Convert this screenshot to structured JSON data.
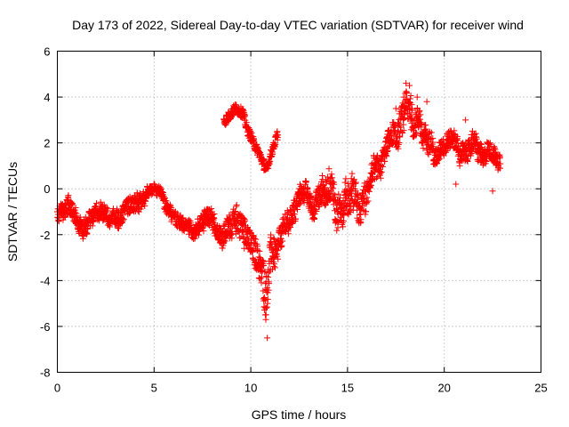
{
  "chart_data": {
    "type": "scatter",
    "title": "Day 173 of 2022, Sidereal Day-to-day VTEC variation (SDTVAR) for receiver wind",
    "xlabel": "GPS time / hours",
    "ylabel": "SDTVAR / TECUs",
    "xlim": [
      0,
      25
    ],
    "ylim": [
      -8,
      6
    ],
    "xticks": [
      0,
      5,
      10,
      15,
      20,
      25
    ],
    "yticks": [
      -8,
      -6,
      -4,
      -2,
      0,
      2,
      4,
      6
    ],
    "xtick_labels": [
      "0",
      "5",
      "10",
      "15",
      "20",
      "25"
    ],
    "ytick_labels": [
      "-8",
      "-6",
      "-4",
      "-2",
      "0",
      "2",
      "4",
      "6"
    ],
    "grid": true,
    "marker": "+",
    "series": [
      {
        "name": "SDTVAR",
        "color": "#ff0000",
        "trend_x": [
          0.0,
          0.3,
          0.6,
          1.0,
          1.5,
          2.0,
          2.5,
          3.0,
          3.5,
          4.0,
          4.3,
          4.6,
          5.0,
          5.4,
          5.8,
          6.2,
          6.6,
          7.0,
          7.5,
          8.0,
          8.4,
          8.8,
          9.2,
          9.6,
          10.0,
          10.3,
          10.6,
          10.8,
          11.0,
          11.3,
          11.6,
          12.0,
          12.4,
          12.8,
          13.2,
          13.6,
          14.0,
          14.4,
          14.8,
          15.2,
          15.6,
          16.0,
          16.4,
          16.8,
          17.2,
          17.6,
          18.0,
          18.4,
          18.8,
          19.2,
          19.6,
          20.0,
          20.4,
          20.8,
          21.2,
          21.6,
          22.0,
          22.4,
          22.9
        ],
        "trend_y": [
          -1.2,
          -1.0,
          -0.8,
          -1.4,
          -1.6,
          -1.0,
          -1.3,
          -1.5,
          -0.8,
          -0.6,
          -0.4,
          -0.3,
          0.0,
          -0.3,
          -0.9,
          -1.2,
          -1.6,
          -1.8,
          -1.5,
          -1.3,
          -2.0,
          -1.6,
          -1.4,
          -1.8,
          -2.4,
          -2.8,
          -3.5,
          -4.2,
          -3.0,
          -2.5,
          -2.0,
          -1.2,
          -0.5,
          0.0,
          -0.8,
          -0.5,
          0.0,
          -0.6,
          -1.2,
          -0.3,
          -0.8,
          -0.3,
          0.6,
          1.4,
          2.0,
          2.4,
          3.3,
          3.2,
          2.5,
          2.0,
          1.4,
          1.8,
          2.2,
          1.5,
          1.6,
          2.0,
          1.4,
          1.5,
          1.2
        ],
        "trend_spread": [
          0.5,
          0.6,
          0.6,
          0.6,
          0.6,
          0.5,
          0.6,
          0.6,
          0.6,
          0.6,
          0.5,
          0.4,
          0.3,
          0.4,
          0.5,
          0.5,
          0.4,
          0.5,
          0.6,
          0.7,
          0.6,
          0.8,
          0.9,
          1.0,
          1.0,
          1.0,
          1.4,
          1.8,
          1.4,
          1.0,
          0.9,
          0.8,
          0.8,
          0.6,
          0.8,
          0.9,
          1.0,
          1.1,
          1.2,
          1.1,
          1.0,
          0.9,
          0.8,
          0.7,
          0.8,
          0.9,
          1.1,
          1.0,
          0.9,
          0.8,
          0.7,
          0.6,
          0.6,
          0.7,
          0.8,
          0.7,
          0.7,
          0.6,
          0.6
        ],
        "extremes": [
          {
            "x": 10.85,
            "y": -6.5
          },
          {
            "x": 10.75,
            "y": -5.5
          },
          {
            "x": 10.65,
            "y": -4.8
          },
          {
            "x": 18.2,
            "y": 4.5
          },
          {
            "x": 17.9,
            "y": 4.0
          },
          {
            "x": 18.6,
            "y": 4.0
          },
          {
            "x": 19.1,
            "y": 3.8
          },
          {
            "x": 17.5,
            "y": 3.5
          },
          {
            "x": 20.6,
            "y": 0.2
          },
          {
            "x": 21.1,
            "y": 3.0
          },
          {
            "x": 22.5,
            "y": -0.1
          }
        ],
        "excursion_x": [
          8.6,
          8.8,
          9.0,
          9.2,
          9.4,
          9.6,
          9.8,
          10.0,
          10.2,
          10.4,
          10.6,
          10.8,
          11.0,
          11.2,
          11.4
        ],
        "excursion_y": [
          2.9,
          3.1,
          3.3,
          3.5,
          3.4,
          3.3,
          2.6,
          2.3,
          1.9,
          1.6,
          1.2,
          0.8,
          1.4,
          1.9,
          2.4
        ]
      }
    ]
  }
}
